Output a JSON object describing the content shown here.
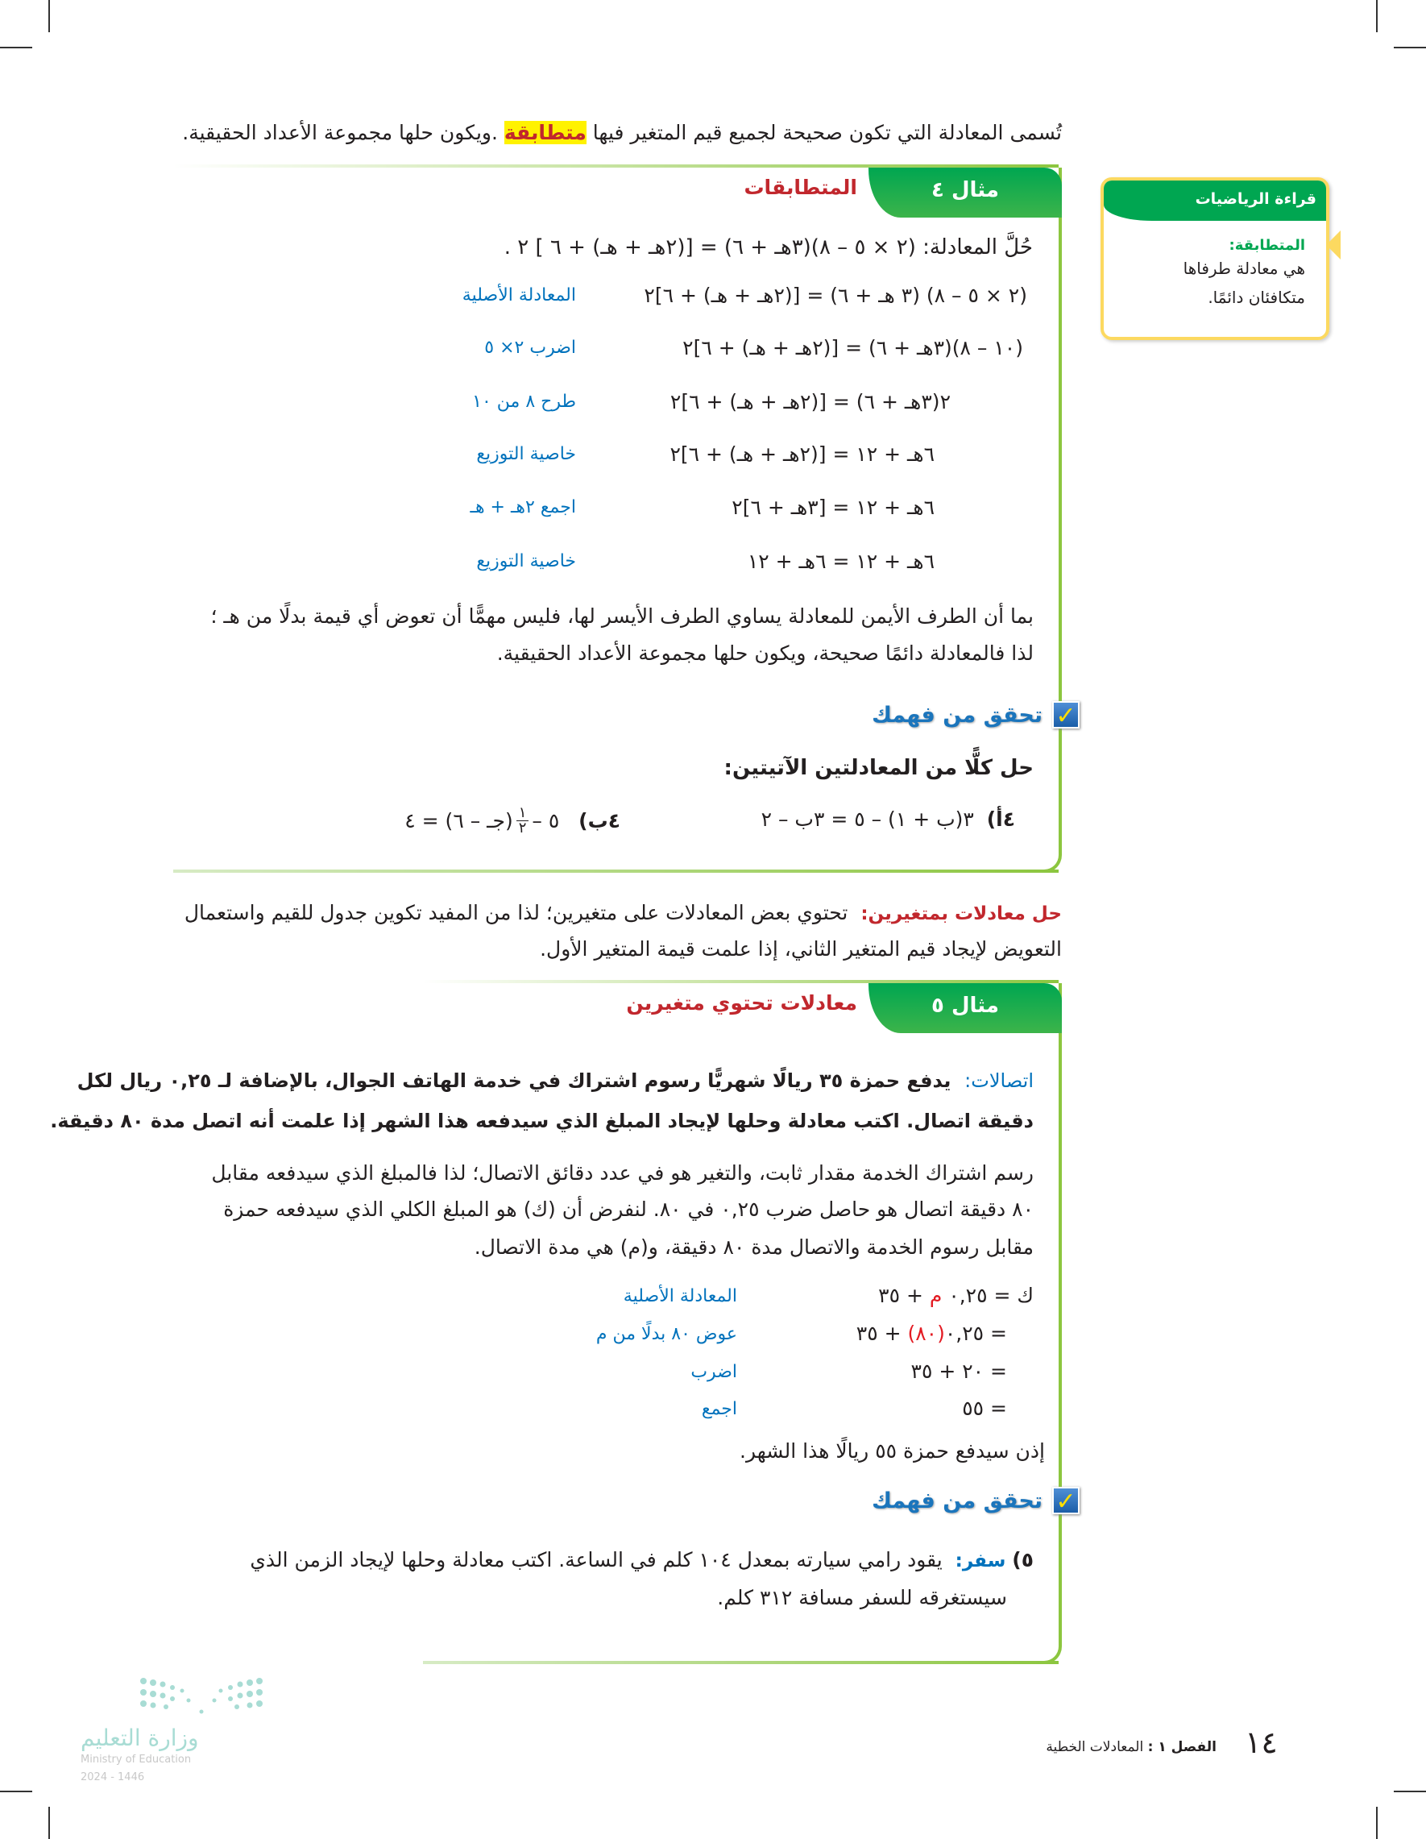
{
  "intro": {
    "text_before": "تُسمى المعادلة التي تكون صحيحة لجميع قيم المتغير فيها ",
    "highlight": "متطابقة",
    "text_after": " .ويكون حلها مجموعة الأعداد الحقيقية."
  },
  "sidebar": {
    "header": "قراءة الرياضيات",
    "term": "المتطابقة:",
    "line1": "هي معادلة طرفاها",
    "line2": "متكافئان دائمًا."
  },
  "example4": {
    "tab": "مثال ٤",
    "title": "المتطابقات",
    "prompt": "حُلَّ المعادلة: (٢ × ٥ – ٨)(٣هـ + ٦) = [(٢هـ + هـ) + ٦ ] ٢ .",
    "steps": [
      {
        "eq": "(٢ × ٥ – ٨) (٣ هـ + ٦) = [(٢هـ + هـ) + ٦]٢",
        "label": "المعادلة الأصلية"
      },
      {
        "eq": "(١٠ – ٨)(٣هـ + ٦) = [(٢هـ + هـ) + ٦]٢",
        "label": "اضرب ٢× ٥"
      },
      {
        "eq": "٢(٣هـ + ٦) = [(٢هـ + هـ) + ٦]٢",
        "label": "طرح ٨ من ١٠"
      },
      {
        "eq": "٦هـ + ١٢ = [(٢هـ + هـ) + ٦]٢",
        "label": "خاصية التوزيع"
      },
      {
        "eq": "٦هـ + ١٢ = [٣هـ + ٦]٢",
        "label": "اجمع ٢هـ + هـ"
      },
      {
        "eq": "٦هـ + ١٢ = ٦هـ + ١٢",
        "label": "خاصية التوزيع"
      }
    ],
    "conclusion1": "بما أن الطرف الأيمن للمعادلة يساوي الطرف الأيسر لها، فليس مهمًّا أن تعوض أي قيمة بدلًا من هـ ؛",
    "conclusion2": "لذا فالمعادلة دائمًا صحيحة، ويكون حلها مجموعة الأعداد الحقيقية.",
    "check": {
      "title": "تحقق من فهمك",
      "mark": "✓",
      "instruction": "حل كلًّا من المعادلتين الآتيتين:",
      "a_label": "٤أ)",
      "a_eq": "٣(ب + ١) – ٥ = ٣ب – ٢",
      "b_label": "٤ب)",
      "b_eq_pre": "٥ – ",
      "frac_num": "١",
      "frac_den": "٢",
      "b_eq_post": "(جـ – ٦) = ٤"
    }
  },
  "two_vars": {
    "label": "حل معادلات بمتغيرين:",
    "line1": "تحتوي بعض المعادلات على متغيرين؛ لذا من المفيد تكوين جدول للقيم واستعمال",
    "line2": "التعويض لإيجاد قيم المتغير الثاني، إذا علمت قيمة المتغير الأول."
  },
  "example5": {
    "tab": "مثال ٥",
    "title": "معادلات تحتوي متغيرين",
    "problem_label": "اتصالات:",
    "problem1": "يدفع حمزة ٣٥ ريالًا شهريًّا رسوم اشتراك في خدمة الهاتف الجوال، بالإضافة لـ ٠,٢٥ ريال لكل",
    "problem2": "دقيقة اتصال. اكتب معادلة وحلها لإيجاد المبلغ الذي سيدفعه هذا الشهر إذا علمت أنه اتصل مدة ٨٠ دقيقة.",
    "para1": "رسم اشتراك الخدمة مقدار ثابت، والتغير هو في عدد دقائق الاتصال؛ لذا فالمبلغ الذي سيدفعه مقابل",
    "para2": "٨٠ دقيقة اتصال هو حاصل ضرب ٠,٢٥ في ٨٠. لنفرض أن (ك) هو المبلغ الكلي الذي سيدفعه حمزة",
    "para3": "مقابل رسوم الخدمة والاتصال مدة ٨٠ دقيقة، و(م) هي مدة الاتصال.",
    "steps": [
      {
        "pre": "ك = ٠,٢٥",
        "red": "م",
        "post": " + ٣٥",
        "label": "المعادلة الأصلية"
      },
      {
        "pre": "= ٠,٢٥",
        "red": "(٨٠)",
        "post": " + ٣٥",
        "label": "عوض ٨٠ بدلًا من م"
      },
      {
        "pre": "= ٢٠ + ٣٥",
        "red": "",
        "post": "",
        "label": "اضرب"
      },
      {
        "pre": "= ٥٥",
        "red": "",
        "post": "",
        "label": "اجمع"
      }
    ],
    "answer": "إذن سيدفع حمزة ٥٥ ريالًا هذا الشهر.",
    "check": {
      "title": "تحقق من فهمك",
      "mark": "✓",
      "num": "٥)",
      "label": "سفر:",
      "line1": "يقود رامي سيارته بمعدل ١٠٤ كلم في الساعة. اكتب معادلة وحلها لإيجاد الزمن الذي",
      "line2": "سيستغرقه للسفر مسافة ٣١٢ كلم."
    }
  },
  "footer": {
    "page": "١٤",
    "chapter": "الفصل ١ :",
    "chapter_title": "المعادلات الخطية",
    "logo_ar": "وزارة التعليم",
    "logo_en": "Ministry of Education",
    "logo_year": "2024 - 1446"
  },
  "colors": {
    "green": "#00a651",
    "accent_red": "#c1272d",
    "label_blue": "#0072bc",
    "highlight": "#fff200"
  }
}
